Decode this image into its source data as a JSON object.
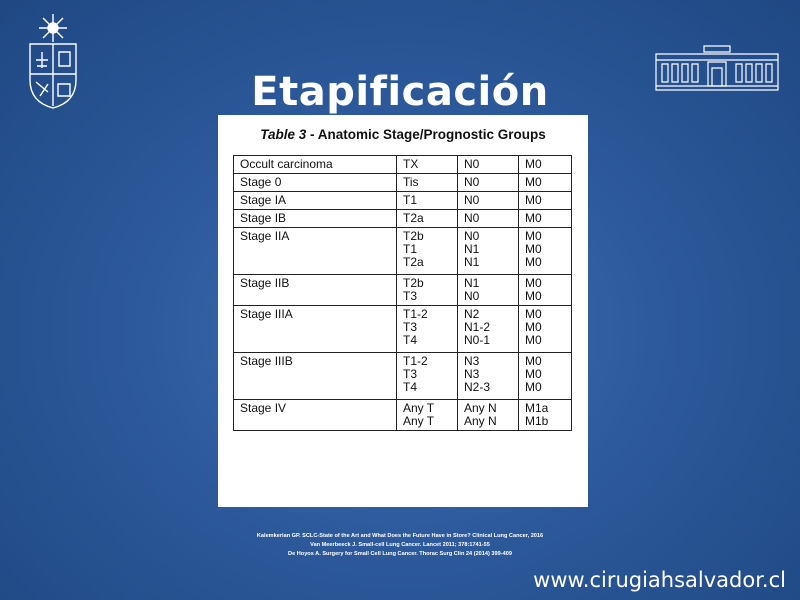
{
  "slide": {
    "title": "Etapificación",
    "website": "www.cirugiahsalvador.cl"
  },
  "table": {
    "caption_number": "Table 3",
    "caption_text": " - Anatomic Stage/Prognostic Groups",
    "rows": [
      {
        "stage": "Occult carcinoma",
        "t": [
          "TX"
        ],
        "n": [
          "N0"
        ],
        "m": [
          "M0"
        ],
        "h": 14
      },
      {
        "stage": "Stage 0",
        "t": [
          "Tis"
        ],
        "n": [
          "N0"
        ],
        "m": [
          "M0"
        ],
        "h": 14
      },
      {
        "stage": "Stage IA",
        "t": [
          "T1"
        ],
        "n": [
          "N0"
        ],
        "m": [
          "M0"
        ],
        "h": 14
      },
      {
        "stage": "Stage IB",
        "t": [
          "T2a"
        ],
        "n": [
          "N0"
        ],
        "m": [
          "M0"
        ],
        "h": 14
      },
      {
        "stage": "Stage IIA",
        "t": [
          "T2b",
          "T1",
          "T2a"
        ],
        "n": [
          "N0",
          "N1",
          "N1"
        ],
        "m": [
          "M0",
          "M0",
          "M0"
        ],
        "h": 46
      },
      {
        "stage": "Stage IIB",
        "t": [
          "T2b",
          "T3"
        ],
        "n": [
          "N1",
          "N0"
        ],
        "m": [
          "M0",
          "M0"
        ],
        "h": 30
      },
      {
        "stage": "Stage IIIA",
        "t": [
          "T1-2",
          "T3",
          "T4"
        ],
        "n": [
          "N2",
          "N1-2",
          "N0-1"
        ],
        "m": [
          "M0",
          "M0",
          "M0"
        ],
        "h": 46
      },
      {
        "stage": "Stage IIIB",
        "t": [
          "T1-2",
          "T3",
          "T4"
        ],
        "n": [
          "N3",
          "N3",
          "N2-3"
        ],
        "m": [
          "M0",
          "M0",
          "M0"
        ],
        "h": 46
      },
      {
        "stage": "Stage IV",
        "t": [
          "Any T",
          "Any T"
        ],
        "n": [
          "Any N",
          "Any N"
        ],
        "m": [
          "M1a",
          "M1b"
        ],
        "h": 30
      }
    ]
  },
  "references": [
    "Kalemkerian GP. SCLC-State of the Art and What Does the Future Have in Store? Clinical Lung Cancer, 2016",
    "Van Meerbeeck J. Small-cell Lung Cancer. Lancet 2011; 378:1741-55",
    "De Hoyos A. Surgery for Small Cell Lung Cancer. Thorac Surg Clin 24 (2014) 399-409"
  ],
  "icons": {
    "left_logo": "university-coat-of-arms-icon",
    "right_logo": "hospital-building-icon"
  }
}
